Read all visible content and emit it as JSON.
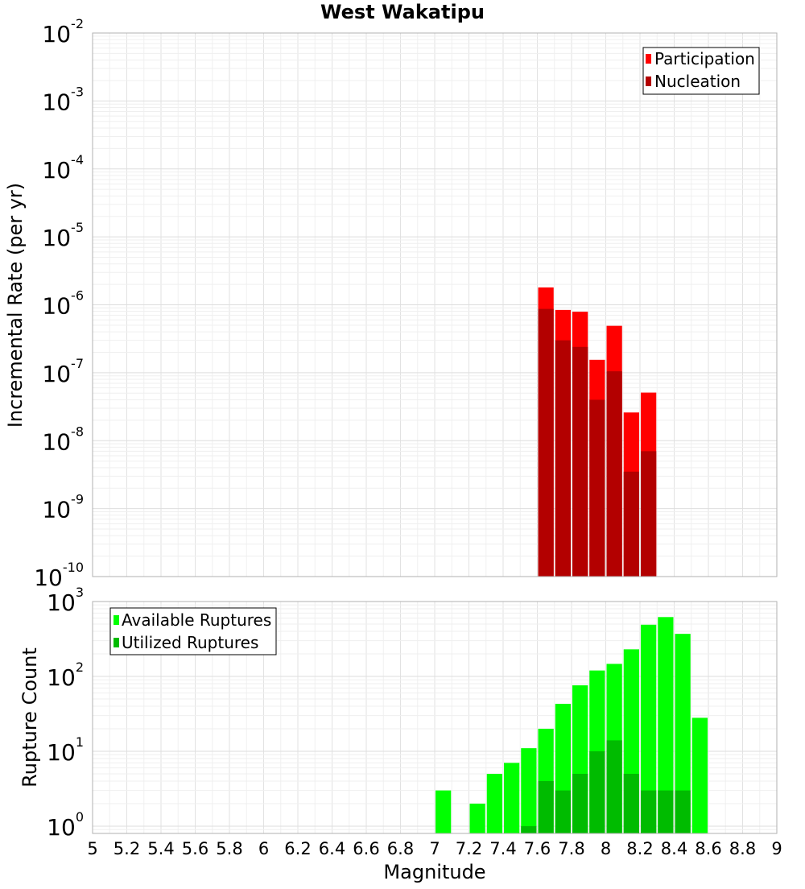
{
  "chart_data": [
    {
      "type": "bar",
      "title": "West Wakatipu",
      "ylabel": "Incremental Rate (per yr)",
      "xlabel": "",
      "xlim": [
        5,
        9
      ],
      "ylim": [
        1e-10,
        0.01
      ],
      "yscale": "log",
      "grid": true,
      "legend_placement": "top-right",
      "y_ticks": [
        {
          "base": "10",
          "exp": "-10",
          "value": 1e-10
        },
        {
          "base": "10",
          "exp": "-9",
          "value": 1e-09
        },
        {
          "base": "10",
          "exp": "-8",
          "value": 1e-08
        },
        {
          "base": "10",
          "exp": "-7",
          "value": 1e-07
        },
        {
          "base": "10",
          "exp": "-6",
          "value": 1e-06
        },
        {
          "base": "10",
          "exp": "-5",
          "value": 1e-05
        },
        {
          "base": "10",
          "exp": "-4",
          "value": 0.0001
        },
        {
          "base": "10",
          "exp": "-3",
          "value": 0.001
        },
        {
          "base": "10",
          "exp": "-2",
          "value": 0.01
        }
      ],
      "series": [
        {
          "name": "Participation",
          "color": "#ff0000",
          "x": [
            7.65,
            7.75,
            7.85,
            7.95,
            8.05,
            8.15,
            8.25
          ],
          "values": [
            1.8e-06,
            8.4e-07,
            7.9e-07,
            1.55e-07,
            4.9e-07,
            2.6e-08,
            5.1e-08
          ]
        },
        {
          "name": "Nucleation",
          "color": "#b30000",
          "x": [
            7.65,
            7.75,
            7.85,
            7.95,
            8.05,
            8.15,
            8.25
          ],
          "values": [
            8.7e-07,
            3e-07,
            2.4e-07,
            4e-08,
            1.05e-07,
            3.5e-09,
            7e-09
          ]
        }
      ]
    },
    {
      "type": "bar",
      "title": "",
      "ylabel": "Rupture Count",
      "xlabel": "Magnitude",
      "xlim": [
        5,
        9
      ],
      "ylim": [
        0.8,
        1000
      ],
      "yscale": "log",
      "grid": true,
      "legend_placement": "top-left",
      "x_ticks": [
        "5",
        "5.2",
        "5.4",
        "5.6",
        "5.8",
        "6",
        "6.2",
        "6.4",
        "6.6",
        "6.8",
        "7",
        "7.2",
        "7.4",
        "7.6",
        "7.8",
        "8",
        "8.2",
        "8.4",
        "8.6",
        "8.8",
        "9"
      ],
      "y_ticks": [
        {
          "base": "10",
          "exp": "0",
          "value": 1
        },
        {
          "base": "10",
          "exp": "1",
          "value": 10
        },
        {
          "base": "10",
          "exp": "2",
          "value": 100
        },
        {
          "base": "10",
          "exp": "3",
          "value": 1000
        }
      ],
      "series": [
        {
          "name": "Available Ruptures",
          "color": "#00ff00",
          "x": [
            7.05,
            7.25,
            7.35,
            7.45,
            7.55,
            7.65,
            7.75,
            7.85,
            7.95,
            8.05,
            8.15,
            8.25,
            8.35,
            8.45,
            8.55
          ],
          "values": [
            3,
            2,
            5,
            7,
            11,
            20,
            43,
            76,
            120,
            147,
            230,
            490,
            620,
            370,
            28
          ]
        },
        {
          "name": "Utilized Ruptures",
          "color": "#00bb00",
          "x": [
            7.55,
            7.65,
            7.75,
            7.85,
            7.95,
            8.05,
            8.15,
            8.25,
            8.35,
            8.45
          ],
          "values": [
            1,
            4,
            3,
            5,
            10,
            14,
            5,
            3,
            3,
            3
          ]
        }
      ]
    }
  ]
}
